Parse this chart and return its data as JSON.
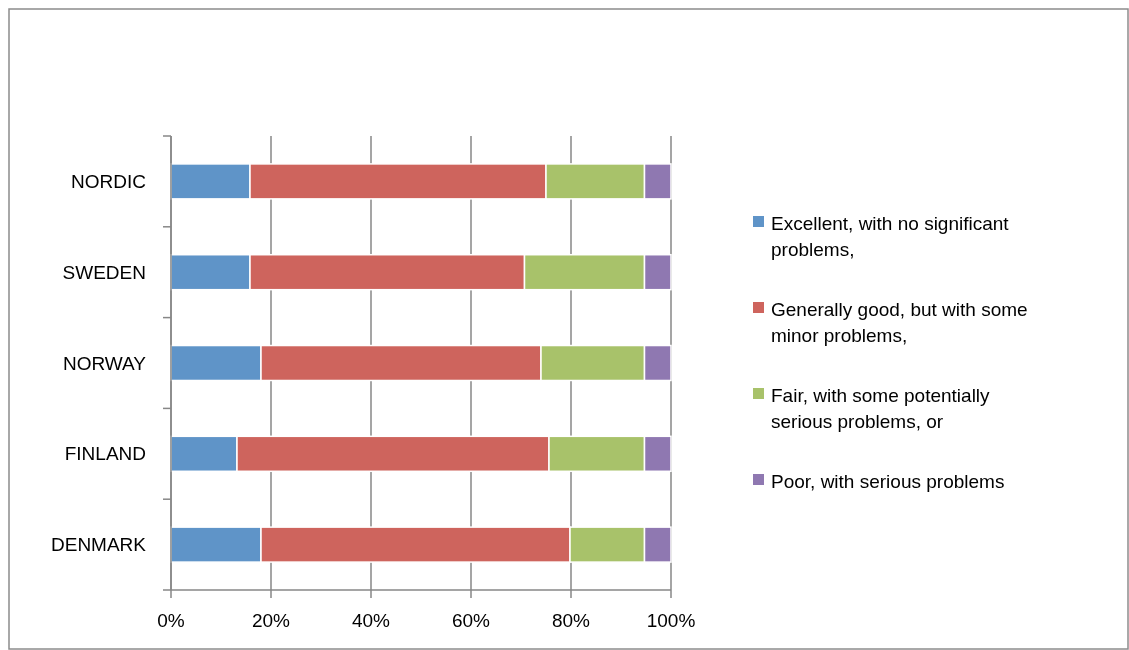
{
  "chart_data": {
    "type": "bar",
    "orientation": "horizontal",
    "stacked": true,
    "categories": [
      "NORDIC",
      "SWEDEN",
      "NORWAY",
      "FINLAND",
      "DENMARK"
    ],
    "series": [
      {
        "name": "Excellent, with no significant problems,",
        "color": "#5f94c8",
        "values": [
          15.8,
          15.8,
          18.0,
          13.2,
          18.0
        ]
      },
      {
        "name": "Generally good, but with some minor problems,",
        "color": "#ce645d",
        "values": [
          59.2,
          54.9,
          56.0,
          62.4,
          61.8
        ]
      },
      {
        "name": "Fair, with some potentially serious problems, or",
        "color": "#a8c26a",
        "values": [
          19.7,
          24.0,
          20.7,
          19.1,
          14.9
        ]
      },
      {
        "name": "Poor, with serious problems",
        "color": "#8f78b1",
        "values": [
          5.3,
          5.3,
          5.3,
          5.3,
          5.3
        ]
      }
    ],
    "xlim": [
      0,
      100
    ],
    "xticks": [
      {
        "value": 0,
        "label": "0%"
      },
      {
        "value": 20,
        "label": "20%"
      },
      {
        "value": 40,
        "label": "40%"
      },
      {
        "value": 60,
        "label": "60%"
      },
      {
        "value": 80,
        "label": "80%"
      },
      {
        "value": 100,
        "label": "100%"
      }
    ],
    "grid": "x",
    "legend": "right"
  }
}
